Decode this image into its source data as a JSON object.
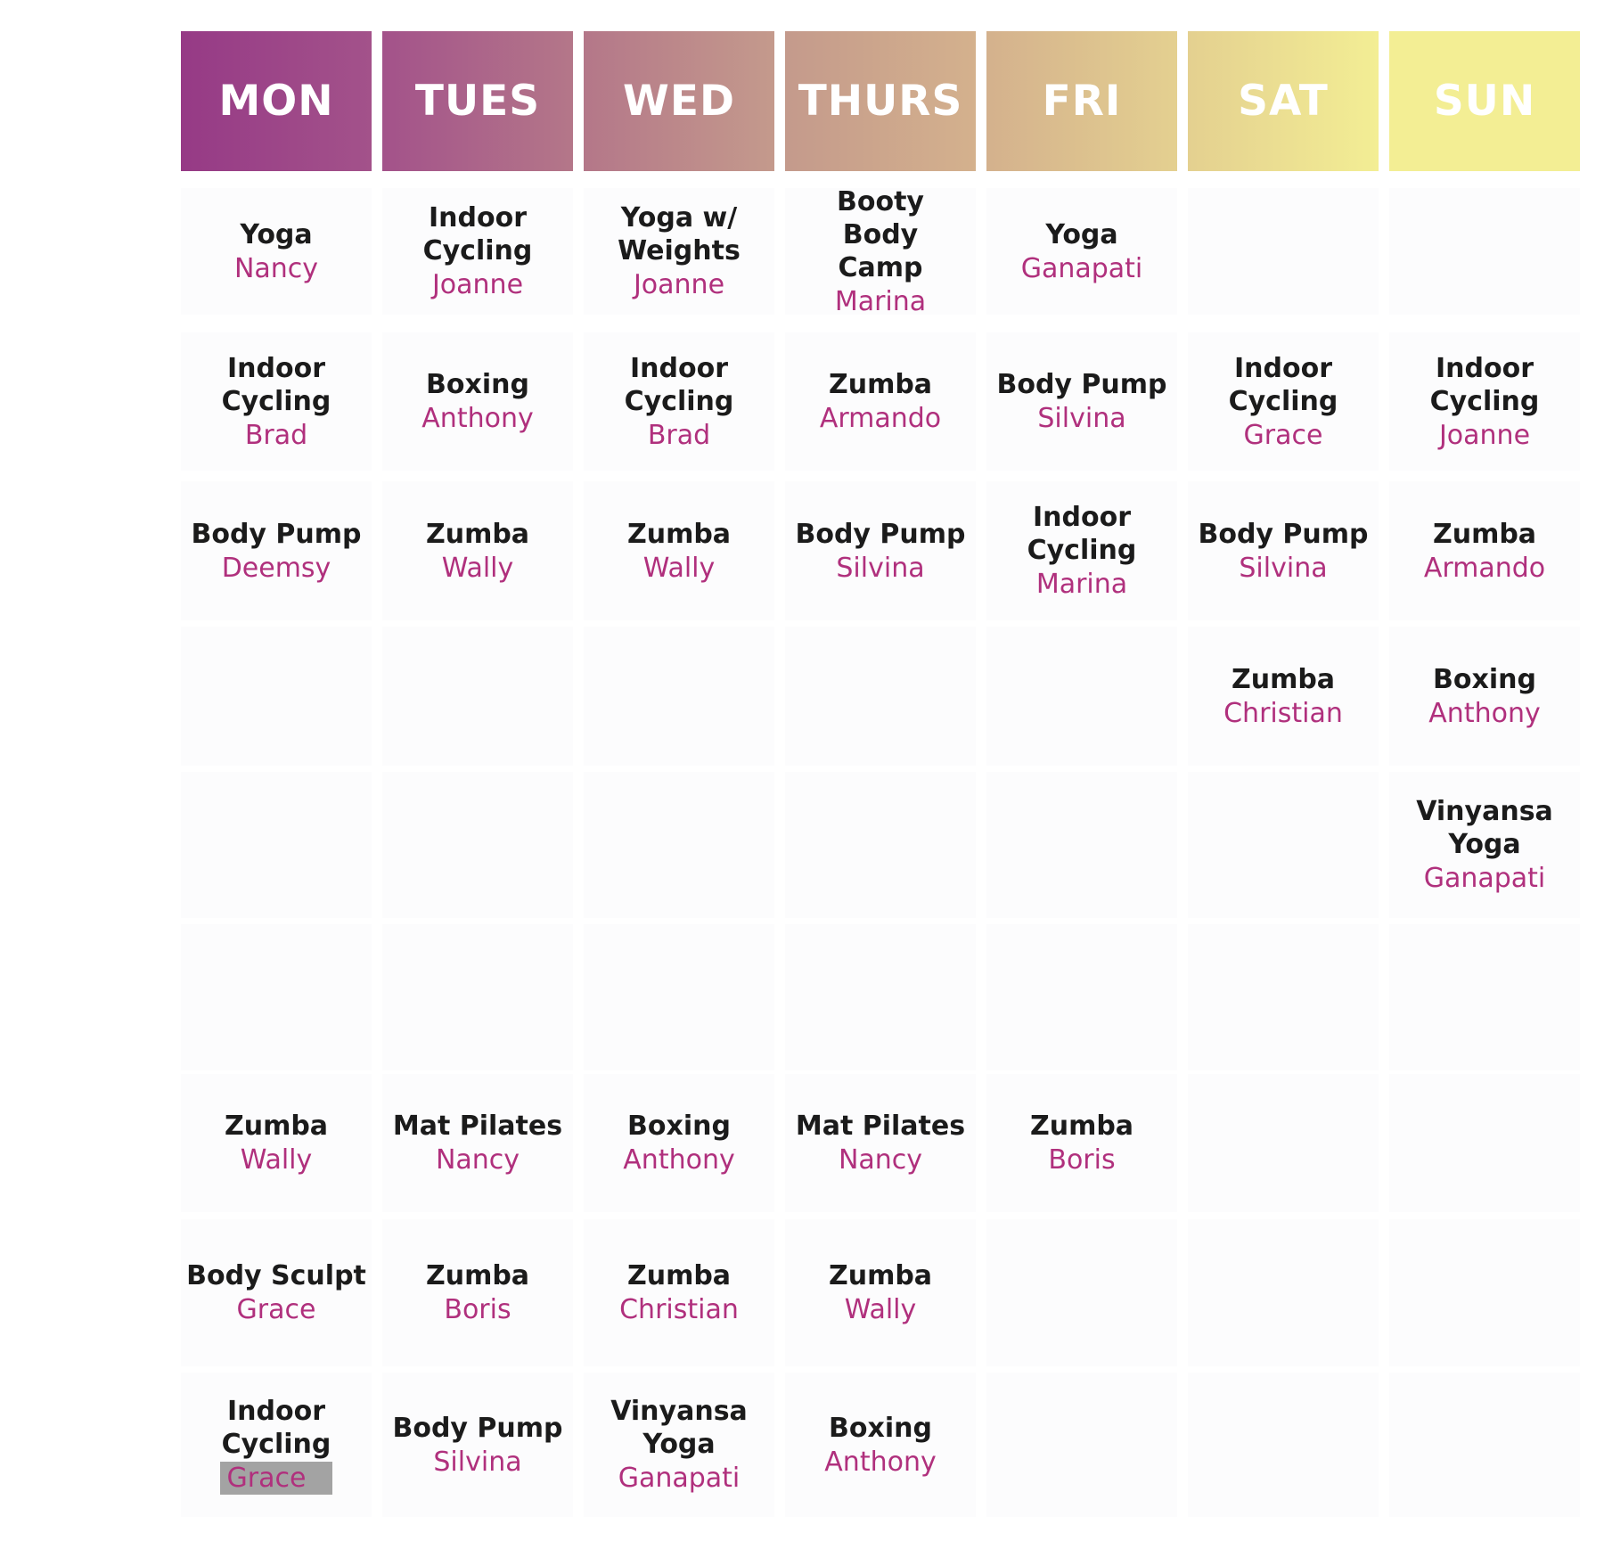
{
  "days": [
    {
      "label": "MON",
      "color": "#963a86"
    },
    {
      "label": "TUES",
      "color": "#a3528a"
    },
    {
      "label": "WED",
      "color": "#b47789"
    },
    {
      "label": "THURS",
      "color": "#c49a8c"
    },
    {
      "label": "FRI",
      "color": "#d4b18d"
    },
    {
      "label": "SAT",
      "color": "#e4d090"
    },
    {
      "label": "SUN",
      "color": "#f3ee94"
    }
  ],
  "schedule": [
    [
      {
        "class": "Yoga",
        "instructor": "Nancy"
      },
      {
        "class": "Indoor Cycling",
        "instructor": "Brad"
      },
      {
        "class": "Body Pump",
        "instructor": "Deemsy"
      },
      null,
      null,
      null,
      {
        "class": "Zumba",
        "instructor": "Wally"
      },
      {
        "class": "Body Sculpt",
        "instructor": "Grace"
      },
      {
        "class": "Indoor Cycling",
        "instructor": "Grace",
        "highlighted": true
      }
    ],
    [
      {
        "class": "Indoor Cycling",
        "instructor": "Joanne"
      },
      {
        "class": "Boxing",
        "instructor": "Anthony"
      },
      {
        "class": "Zumba",
        "instructor": "Wally"
      },
      null,
      null,
      null,
      {
        "class": "Mat Pilates",
        "instructor": "Nancy"
      },
      {
        "class": "Zumba",
        "instructor": "Boris"
      },
      {
        "class": "Body Pump",
        "instructor": "Silvina"
      }
    ],
    [
      {
        "class": "Yoga w/ Weights",
        "instructor": "Joanne"
      },
      {
        "class": "Indoor Cycling",
        "instructor": "Brad"
      },
      {
        "class": "Zumba",
        "instructor": "Wally"
      },
      null,
      null,
      null,
      {
        "class": "Boxing",
        "instructor": "Anthony"
      },
      {
        "class": "Zumba",
        "instructor": "Christian"
      },
      {
        "class": "Vinyansa Yoga",
        "instructor": "Ganapati"
      }
    ],
    [
      {
        "class": "Booty Body Camp",
        "instructor": "Marina"
      },
      {
        "class": "Zumba",
        "instructor": "Armando"
      },
      {
        "class": "Body Pump",
        "instructor": "Silvina"
      },
      null,
      null,
      null,
      {
        "class": "Mat Pilates",
        "instructor": "Nancy"
      },
      {
        "class": "Zumba",
        "instructor": "Wally"
      },
      {
        "class": "Boxing",
        "instructor": "Anthony"
      }
    ],
    [
      {
        "class": "Yoga",
        "instructor": "Ganapati"
      },
      {
        "class": "Body Pump",
        "instructor": "Silvina"
      },
      {
        "class": "Indoor Cycling",
        "instructor": "Marina"
      },
      null,
      null,
      null,
      {
        "class": "Zumba",
        "instructor": "Boris"
      },
      null,
      null
    ],
    [
      null,
      {
        "class": "Indoor Cycling",
        "instructor": "Grace"
      },
      {
        "class": "Body Pump",
        "instructor": "Silvina"
      },
      {
        "class": "Zumba",
        "instructor": "Christian"
      },
      null,
      null,
      null,
      null,
      null
    ],
    [
      null,
      {
        "class": "Indoor Cycling",
        "instructor": "Joanne"
      },
      {
        "class": "Zumba",
        "instructor": "Armando"
      },
      {
        "class": "Boxing",
        "instructor": "Anthony"
      },
      {
        "class": "Vinyansa Yoga",
        "instructor": "Ganapati"
      },
      null,
      null,
      null,
      null
    ]
  ]
}
